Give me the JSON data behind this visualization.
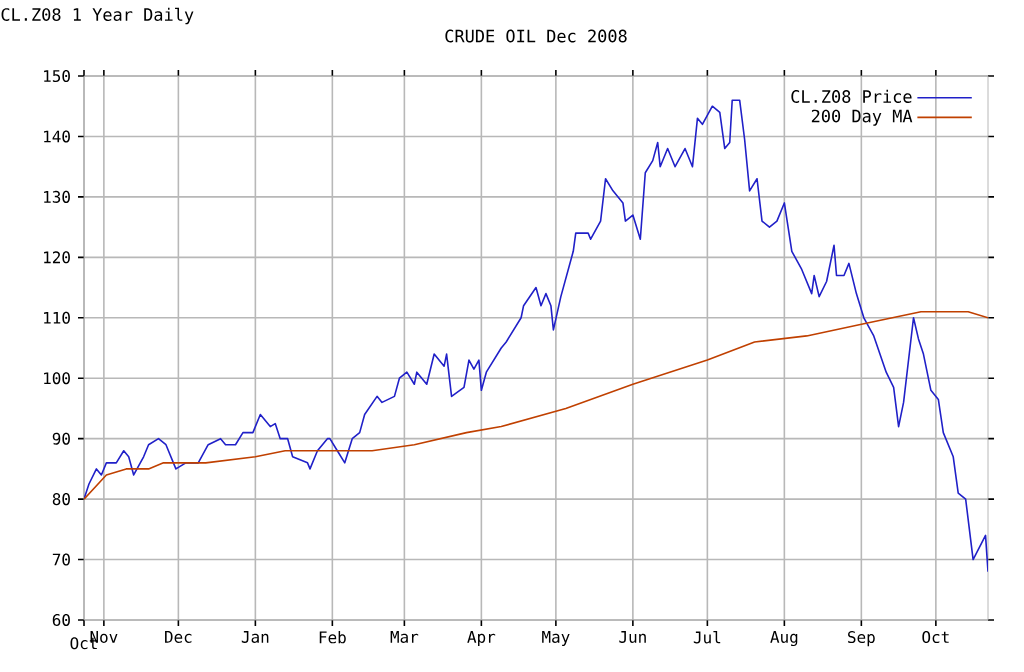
{
  "chart_data": {
    "type": "line",
    "title": "CRUDE OIL Dec 2008",
    "subtitle": "CL.Z08 1 Year Daily",
    "xlim": [
      "2007-10-24",
      "2008-10-22"
    ],
    "xticks": [
      {
        "value": "2007-10-24",
        "label": "Oct"
      },
      {
        "value": "2007-11-01",
        "label": "Nov"
      },
      {
        "value": "2007-12-01",
        "label": "Dec"
      },
      {
        "value": "2008-01-01",
        "label": "Jan"
      },
      {
        "value": "2008-02-01",
        "label": "Feb"
      },
      {
        "value": "2008-03-01",
        "label": "Mar"
      },
      {
        "value": "2008-04-01",
        "label": "Apr"
      },
      {
        "value": "2008-05-01",
        "label": "May"
      },
      {
        "value": "2008-06-01",
        "label": "Jun"
      },
      {
        "value": "2008-07-01",
        "label": "Jul"
      },
      {
        "value": "2008-08-01",
        "label": "Aug"
      },
      {
        "value": "2008-09-01",
        "label": "Sep"
      },
      {
        "value": "2008-10-01",
        "label": "Oct"
      }
    ],
    "ylim": [
      60,
      150
    ],
    "yticks": [
      60,
      70,
      80,
      90,
      100,
      110,
      120,
      130,
      140,
      150
    ],
    "grid": true,
    "legend": "top right",
    "series": [
      {
        "name": "CL.Z08 Price",
        "color": "#2020c8",
        "x": [
          "2007-10-24",
          "2007-10-26",
          "2007-10-29",
          "2007-10-31",
          "2007-11-02",
          "2007-11-06",
          "2007-11-09",
          "2007-11-11",
          "2007-11-13",
          "2007-11-17",
          "2007-11-19",
          "2007-11-23",
          "2007-11-26",
          "2007-11-30",
          "2007-12-04",
          "2007-12-09",
          "2007-12-13",
          "2007-12-18",
          "2007-12-20",
          "2007-12-24",
          "2007-12-27",
          "2007-12-31",
          "2008-01-03",
          "2008-01-07",
          "2008-01-09",
          "2008-01-11",
          "2008-01-14",
          "2008-01-16",
          "2008-01-22",
          "2008-01-23",
          "2008-01-26",
          "2008-01-30",
          "2008-01-31",
          "2008-02-03",
          "2008-02-06",
          "2008-02-09",
          "2008-02-12",
          "2008-02-14",
          "2008-02-19",
          "2008-02-21",
          "2008-02-26",
          "2008-02-28",
          "2008-03-02",
          "2008-03-05",
          "2008-03-06",
          "2008-03-10",
          "2008-03-13",
          "2008-03-17",
          "2008-03-18",
          "2008-03-20",
          "2008-03-25",
          "2008-03-27",
          "2008-03-29",
          "2008-03-31",
          "2008-04-01",
          "2008-04-03",
          "2008-04-09",
          "2008-04-11",
          "2008-04-17",
          "2008-04-18",
          "2008-04-23",
          "2008-04-25",
          "2008-04-27",
          "2008-04-29",
          "2008-04-30",
          "2008-05-03",
          "2008-05-08",
          "2008-05-09",
          "2008-05-14",
          "2008-05-15",
          "2008-05-19",
          "2008-05-21",
          "2008-05-24",
          "2008-05-28",
          "2008-05-29",
          "2008-06-01",
          "2008-06-04",
          "2008-06-06",
          "2008-06-09",
          "2008-06-11",
          "2008-06-12",
          "2008-06-15",
          "2008-06-18",
          "2008-06-22",
          "2008-06-25",
          "2008-06-27",
          "2008-06-29",
          "2008-07-03",
          "2008-07-06",
          "2008-07-08",
          "2008-07-10",
          "2008-07-11",
          "2008-07-14",
          "2008-07-16",
          "2008-07-18",
          "2008-07-21",
          "2008-07-23",
          "2008-07-26",
          "2008-07-29",
          "2008-08-01",
          "2008-08-04",
          "2008-08-08",
          "2008-08-12",
          "2008-08-13",
          "2008-08-15",
          "2008-08-18",
          "2008-08-21",
          "2008-08-22",
          "2008-08-25",
          "2008-08-27",
          "2008-08-30",
          "2008-09-02",
          "2008-09-06",
          "2008-09-11",
          "2008-09-14",
          "2008-09-16",
          "2008-09-18",
          "2008-09-22",
          "2008-09-24",
          "2008-09-26",
          "2008-09-29",
          "2008-10-02",
          "2008-10-04",
          "2008-10-08",
          "2008-10-10",
          "2008-10-13",
          "2008-10-16",
          "2008-10-21",
          "2008-10-22"
        ],
        "values": [
          80,
          82.5,
          85,
          84,
          86,
          86,
          88,
          87,
          84,
          87,
          89,
          90,
          89,
          85,
          86,
          86,
          89,
          90,
          89,
          89,
          91,
          91,
          94,
          92,
          92.5,
          90,
          90,
          87,
          86,
          85,
          88,
          90,
          90,
          88,
          86,
          90,
          91,
          94,
          97,
          96,
          97,
          100,
          101,
          99,
          101,
          99,
          104,
          102,
          104,
          97,
          98.5,
          103,
          101.5,
          103,
          98,
          101,
          105,
          106,
          110,
          112,
          115,
          112,
          114,
          112,
          108,
          113.5,
          121,
          124,
          124,
          123,
          126,
          133,
          131,
          129,
          126,
          127,
          123,
          134,
          136,
          139,
          135,
          138,
          135,
          138,
          135,
          143,
          142,
          145,
          144,
          138,
          139,
          146,
          146,
          139.5,
          131,
          133,
          126,
          125,
          126,
          129,
          121,
          118,
          114,
          117,
          113.5,
          116,
          122,
          117,
          117,
          119,
          114,
          110,
          107,
          101,
          98.5,
          92,
          96,
          110,
          106.5,
          104,
          98,
          96.5,
          91,
          87,
          81,
          80,
          70,
          74,
          68
        ]
      },
      {
        "name": "200 Day MA",
        "color": "#c04000",
        "x": [
          "2007-10-24",
          "2007-11-02",
          "2007-11-10",
          "2007-11-19",
          "2007-11-25",
          "2007-12-12",
          "2008-01-01",
          "2008-01-13",
          "2008-02-01",
          "2008-02-17",
          "2008-03-05",
          "2008-03-26",
          "2008-04-09",
          "2008-05-05",
          "2008-06-01",
          "2008-07-01",
          "2008-07-20",
          "2008-08-10",
          "2008-09-02",
          "2008-09-25",
          "2008-10-14",
          "2008-10-22"
        ],
        "values": [
          80,
          84,
          85,
          85,
          86,
          86,
          87,
          88,
          88,
          88,
          89,
          91,
          92,
          95,
          99,
          103,
          106,
          107,
          109,
          111,
          111,
          110
        ]
      }
    ]
  }
}
